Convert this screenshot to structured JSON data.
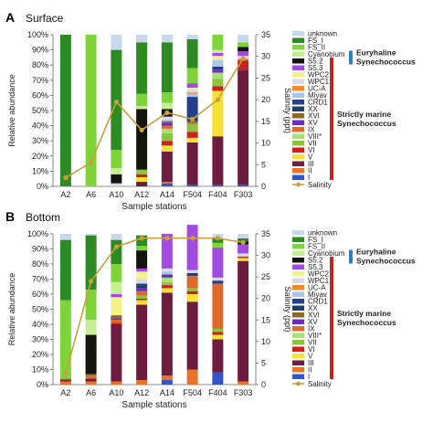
{
  "figure": {
    "panelA": {
      "letter": "A",
      "title": "Surface"
    },
    "panelB": {
      "letter": "B",
      "title": "Bottom"
    }
  },
  "legend": {
    "entries": [
      {
        "label": "unknown",
        "color": "#c9d9ec"
      },
      {
        "label": "FS_I",
        "color": "#2e8b23"
      },
      {
        "label": "FS_II",
        "color": "#7fd43a"
      },
      {
        "label": "Cyanobium",
        "color": "#c6ee95"
      },
      {
        "label": "S5.2",
        "color": "#14140e"
      },
      {
        "label": "S5.3",
        "color": "#a24be0"
      },
      {
        "label": "WPC2",
        "color": "#f3f38a"
      },
      {
        "label": "WPC1",
        "color": "#d8d8e8"
      },
      {
        "label": "UC-A",
        "color": "#f28a2e"
      },
      {
        "label": "Miyav",
        "color": "#a9c6ea"
      },
      {
        "label": "CRD1",
        "color": "#243f8f"
      },
      {
        "label": "XX",
        "color": "#1f3d6b"
      },
      {
        "label": "XVI",
        "color": "#8a6a2a"
      },
      {
        "label": "XV",
        "color": "#6d2cc0"
      },
      {
        "label": "IX",
        "color": "#dd6a2a"
      },
      {
        "label": "VIII*",
        "color": "#a7e07a"
      },
      {
        "label": "VII",
        "color": "#8bc53f"
      },
      {
        "label": "VI",
        "color": "#c8211e"
      },
      {
        "label": "V",
        "color": "#f7e034"
      },
      {
        "label": "III",
        "color": "#6d1d3e"
      },
      {
        "label": "II",
        "color": "#e8742c"
      },
      {
        "label": "I",
        "color": "#3553c8"
      }
    ],
    "salinity_label": "Salinity",
    "salinity_color": "#c8a03c",
    "group_euryhaline": [
      "Euryhaline",
      "Synechococcus"
    ],
    "group_marine": [
      "Strictly marine",
      "Synechococcus"
    ]
  },
  "chart_data": [
    {
      "type": "bar",
      "stacked": true,
      "panel": "A",
      "title": "Surface",
      "xlabel": "Sample stations",
      "ylabel": "Relative abundance",
      "y2label": "Salinity (ppt)",
      "categories": [
        "A2",
        "A6",
        "A10",
        "A12",
        "A14",
        "F504",
        "F404",
        "F303"
      ],
      "ylim": [
        0,
        100
      ],
      "yticks": [
        "0%",
        "10%",
        "20%",
        "30%",
        "40%",
        "50%",
        "60%",
        "70%",
        "80%",
        "90%",
        "100%"
      ],
      "y2lim": [
        0,
        35
      ],
      "y2ticks": [
        "0",
        "5",
        "10",
        "15",
        "20",
        "25",
        "30",
        "35"
      ],
      "series": [
        {
          "name": "I",
          "values": [
            0,
            0,
            0,
            0,
            2,
            1,
            1,
            1
          ]
        },
        {
          "name": "II",
          "values": [
            0,
            0,
            0,
            0,
            1,
            0,
            0,
            0
          ]
        },
        {
          "name": "III",
          "values": [
            0,
            0,
            0,
            3,
            20,
            28,
            32,
            76
          ]
        },
        {
          "name": "V",
          "values": [
            0,
            0,
            0,
            3,
            4,
            3,
            30,
            0
          ]
        },
        {
          "name": "VI",
          "values": [
            0,
            0,
            0,
            2,
            3,
            4,
            3,
            6
          ]
        },
        {
          "name": "VII",
          "values": [
            0,
            0,
            0,
            3,
            5,
            5,
            5,
            0
          ]
        },
        {
          "name": "VIII*",
          "values": [
            0,
            0,
            0,
            0,
            3,
            0,
            4,
            0
          ]
        },
        {
          "name": "IX",
          "values": [
            0,
            0,
            0,
            0,
            2,
            1,
            0,
            1
          ]
        },
        {
          "name": "XV",
          "values": [
            0,
            0,
            0,
            0,
            2,
            0,
            2,
            0
          ]
        },
        {
          "name": "XVI",
          "values": [
            0,
            0,
            0,
            0,
            1,
            1,
            0,
            0
          ]
        },
        {
          "name": "XX",
          "values": [
            0,
            0,
            0,
            0,
            0,
            2,
            0,
            0
          ]
        },
        {
          "name": "CRD1",
          "values": [
            0,
            0,
            0,
            0,
            0,
            14,
            2,
            0
          ]
        },
        {
          "name": "Miyav",
          "values": [
            0,
            0,
            0,
            0,
            1,
            2,
            4,
            0
          ]
        },
        {
          "name": "UC-A",
          "values": [
            0,
            0,
            0,
            0,
            0,
            1,
            0,
            0
          ]
        },
        {
          "name": "WPC1",
          "values": [
            0,
            0,
            2,
            0,
            2,
            2,
            1,
            2
          ]
        },
        {
          "name": "WPC2",
          "values": [
            0,
            0,
            0,
            0,
            0,
            1,
            2,
            0
          ]
        },
        {
          "name": "S5.3",
          "values": [
            0,
            0,
            0,
            0,
            0,
            3,
            2,
            3
          ]
        },
        {
          "name": "S5.2",
          "values": [
            0,
            0,
            6,
            40,
            5,
            0,
            0,
            3
          ]
        },
        {
          "name": "Cyanobium",
          "values": [
            0,
            0,
            4,
            2,
            4,
            0,
            2,
            0
          ]
        },
        {
          "name": "FS_II",
          "values": [
            0,
            100,
            12,
            8,
            7,
            10,
            10,
            3
          ]
        },
        {
          "name": "FS_I",
          "values": [
            100,
            0,
            66,
            34,
            33,
            19,
            0,
            0
          ]
        },
        {
          "name": "unknown",
          "values": [
            0,
            0,
            10,
            5,
            5,
            3,
            0,
            5
          ]
        }
      ],
      "salinity": [
        2,
        5.5,
        19.5,
        13,
        17,
        15.5,
        20,
        29.5
      ]
    },
    {
      "type": "bar",
      "stacked": true,
      "panel": "B",
      "title": "Bottom",
      "xlabel": "Sample stations",
      "ylabel": "Relative abundance",
      "y2label": "Salinity (ppt)",
      "categories": [
        "A2",
        "A6",
        "A10",
        "A12",
        "A14",
        "F504",
        "F404",
        "F303"
      ],
      "ylim": [
        0,
        100
      ],
      "yticks": [
        "0%",
        "10%",
        "20%",
        "30%",
        "40%",
        "50%",
        "60%",
        "70%",
        "80%",
        "90%",
        "100%"
      ],
      "y2lim": [
        0,
        35
      ],
      "y2ticks": [
        "0",
        "5",
        "10",
        "15",
        "20",
        "25",
        "30",
        "35"
      ],
      "series": [
        {
          "name": "I",
          "values": [
            0,
            0,
            0,
            0,
            3,
            0,
            8,
            0
          ]
        },
        {
          "name": "II",
          "values": [
            2,
            2,
            2,
            3,
            3,
            10,
            0,
            2
          ]
        },
        {
          "name": "III",
          "values": [
            1,
            2,
            38,
            50,
            55,
            45,
            22,
            80
          ]
        },
        {
          "name": "V",
          "values": [
            0,
            0,
            0,
            3,
            3,
            5,
            3,
            2
          ]
        },
        {
          "name": "VI",
          "values": [
            0,
            0,
            1,
            1,
            2,
            2,
            2,
            1
          ]
        },
        {
          "name": "VII",
          "values": [
            0,
            0,
            0,
            2,
            2,
            2,
            2,
            0
          ]
        },
        {
          "name": "VIII*",
          "values": [
            0,
            0,
            0,
            0,
            3,
            0,
            0,
            0
          ]
        },
        {
          "name": "IX",
          "values": [
            0,
            2,
            2,
            3,
            0,
            8,
            30,
            0
          ]
        },
        {
          "name": "XV",
          "values": [
            0,
            0,
            1,
            2,
            2,
            0,
            0,
            0
          ]
        },
        {
          "name": "XVI",
          "values": [
            1,
            1,
            2,
            0,
            0,
            0,
            0,
            0
          ]
        },
        {
          "name": "XX",
          "values": [
            0,
            0,
            0,
            2,
            0,
            0,
            0,
            0
          ]
        },
        {
          "name": "CRD1",
          "values": [
            0,
            0,
            0,
            1,
            0,
            2,
            2,
            0
          ]
        },
        {
          "name": "Miyav",
          "values": [
            0,
            0,
            0,
            0,
            2,
            0,
            0,
            0
          ]
        },
        {
          "name": "UC-A",
          "values": [
            0,
            0,
            0,
            0,
            0,
            0,
            0,
            0
          ]
        },
        {
          "name": "WPC1",
          "values": [
            0,
            0,
            0,
            3,
            2,
            2,
            2,
            2
          ]
        },
        {
          "name": "WPC2",
          "values": [
            0,
            0,
            12,
            5,
            0,
            0,
            0,
            0
          ]
        },
        {
          "name": "S5.3",
          "values": [
            0,
            0,
            2,
            2,
            23,
            30,
            20,
            6
          ]
        },
        {
          "name": "S5.2",
          "values": [
            0,
            26,
            0,
            12,
            0,
            0,
            0,
            2
          ]
        },
        {
          "name": "Cyanobium",
          "values": [
            0,
            10,
            8,
            0,
            0,
            0,
            0,
            0
          ]
        },
        {
          "name": "FS_II",
          "values": [
            52,
            20,
            12,
            3,
            0,
            0,
            3,
            0
          ]
        },
        {
          "name": "FS_I",
          "values": [
            40,
            36,
            16,
            7,
            0,
            0,
            3,
            2
          ]
        },
        {
          "name": "unknown",
          "values": [
            4,
            1,
            4,
            0,
            0,
            0,
            3,
            3
          ]
        }
      ],
      "salinity": [
        2.5,
        24,
        32,
        34,
        34,
        34,
        34,
        33
      ]
    }
  ]
}
